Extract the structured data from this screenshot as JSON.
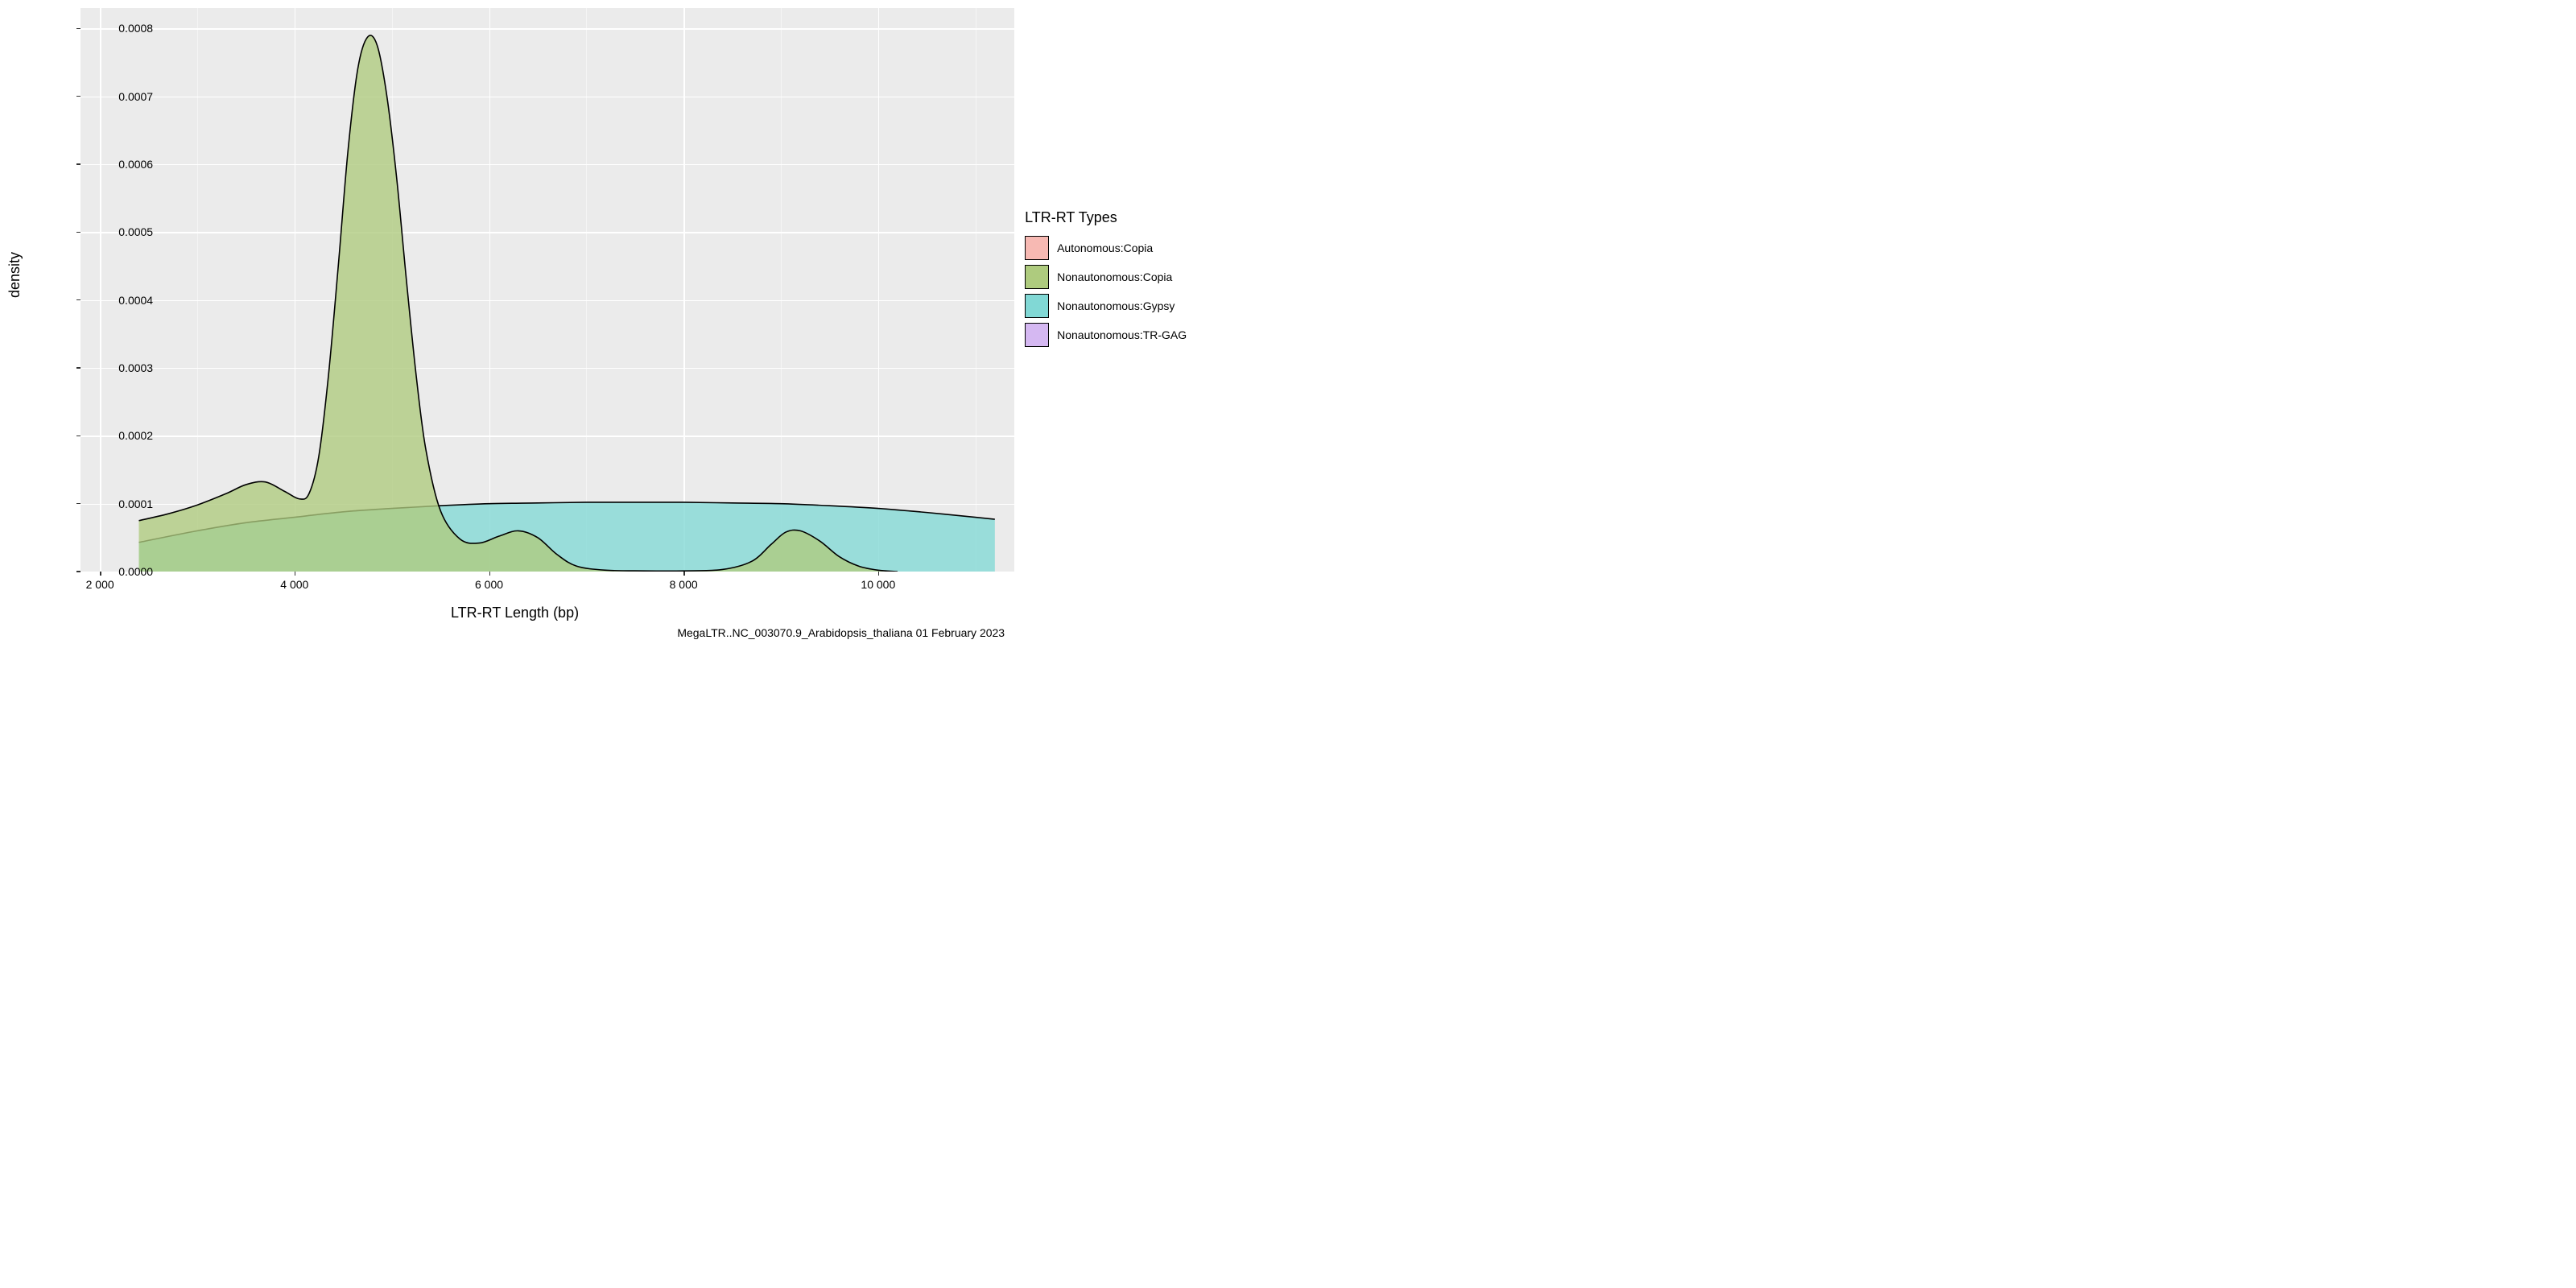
{
  "chart": {
    "type": "density",
    "xlabel": "LTR-RT Length (bp)",
    "ylabel": "density",
    "caption": "MegaLTR..NC_003070.9_Arabidopsis_thaliana 01 February 2023",
    "background_color": "#ebebeb",
    "grid_major_color": "#ffffff",
    "grid_minor_color": "#f5f5f5",
    "label_fontsize": 18,
    "tick_fontsize": 14,
    "xlim": [
      1800,
      11400
    ],
    "ylim": [
      0,
      0.00083
    ],
    "x_ticks": [
      2000,
      4000,
      6000,
      8000,
      10000
    ],
    "x_tick_labels": [
      "2 000",
      "4 000",
      "6 000",
      "8 000",
      "10 000"
    ],
    "x_minor_ticks": [
      3000,
      5000,
      7000,
      9000,
      11000
    ],
    "y_ticks": [
      0,
      0.0001,
      0.0002,
      0.0003,
      0.0004,
      0.0005,
      0.0006,
      0.0007,
      0.0008
    ],
    "y_tick_labels": [
      "0.0000",
      "0.0001",
      "0.0002",
      "0.0003",
      "0.0004",
      "0.0005",
      "0.0006",
      "0.0007",
      "0.0008"
    ],
    "legend": {
      "title": "LTR-RT Types",
      "items": [
        {
          "label": "Autonomous:Copia",
          "color": "#f7b9b3"
        },
        {
          "label": "Nonautonomous:Copia",
          "color": "#aecb7e"
        },
        {
          "label": "Nonautonomous:Gypsy",
          "color": "#81d8d5"
        },
        {
          "label": "Nonautonomous:TR-GAG",
          "color": "#d5b8f2"
        }
      ]
    },
    "series": [
      {
        "name": "Nonautonomous:Gypsy",
        "fill": "#81d8d5",
        "fill_opacity": 0.78,
        "stroke": "#000000",
        "stroke_width": 1.6,
        "points": [
          [
            2400,
            4.3e-05
          ],
          [
            3000,
            6e-05
          ],
          [
            3500,
            7.2e-05
          ],
          [
            4000,
            8e-05
          ],
          [
            4500,
            8.8e-05
          ],
          [
            5000,
            9.3e-05
          ],
          [
            5500,
            9.7e-05
          ],
          [
            6000,
            0.0001
          ],
          [
            6500,
            0.000101
          ],
          [
            7000,
            0.000102
          ],
          [
            7500,
            0.000102
          ],
          [
            8000,
            0.000102
          ],
          [
            8500,
            0.000101
          ],
          [
            9000,
            0.0001
          ],
          [
            9500,
            9.7e-05
          ],
          [
            10000,
            9.3e-05
          ],
          [
            10500,
            8.7e-05
          ],
          [
            11000,
            8e-05
          ],
          [
            11200,
            7.7e-05
          ]
        ]
      },
      {
        "name": "Nonautonomous:Copia",
        "fill": "#aecb7e",
        "fill_opacity": 0.78,
        "stroke": "#000000",
        "stroke_width": 1.6,
        "points": [
          [
            2400,
            7.5e-05
          ],
          [
            2700,
            8.5e-05
          ],
          [
            3000,
            9.8e-05
          ],
          [
            3300,
            0.000115
          ],
          [
            3500,
            0.000128
          ],
          [
            3700,
            0.000132
          ],
          [
            3900,
            0.000118
          ],
          [
            4050,
            0.000107
          ],
          [
            4150,
            0.000115
          ],
          [
            4250,
            0.00017
          ],
          [
            4350,
            0.00029
          ],
          [
            4450,
            0.00045
          ],
          [
            4550,
            0.00062
          ],
          [
            4650,
            0.00074
          ],
          [
            4750,
            0.000787
          ],
          [
            4850,
            0.000775
          ],
          [
            4950,
            0.0007
          ],
          [
            5050,
            0.00058
          ],
          [
            5150,
            0.00043
          ],
          [
            5250,
            0.00029
          ],
          [
            5350,
            0.00018
          ],
          [
            5500,
            9e-05
          ],
          [
            5700,
            4.8e-05
          ],
          [
            5900,
            4.2e-05
          ],
          [
            6100,
            5.2e-05
          ],
          [
            6300,
            6e-05
          ],
          [
            6500,
            5e-05
          ],
          [
            6700,
            2.5e-05
          ],
          [
            6900,
            8e-06
          ],
          [
            7200,
            2e-06
          ],
          [
            7600,
            1e-06
          ],
          [
            8000,
            1e-06
          ],
          [
            8400,
            3e-06
          ],
          [
            8700,
            1.5e-05
          ],
          [
            8900,
            4e-05
          ],
          [
            9050,
            5.8e-05
          ],
          [
            9200,
            6e-05
          ],
          [
            9400,
            4.5e-05
          ],
          [
            9600,
            2.2e-05
          ],
          [
            9800,
            8e-06
          ],
          [
            10000,
            2e-06
          ],
          [
            10200,
            0.0
          ]
        ]
      }
    ]
  }
}
